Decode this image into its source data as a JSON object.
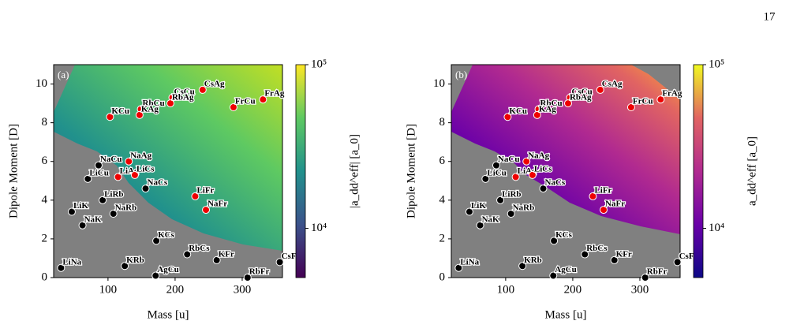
{
  "page_number": "17",
  "chart_data": [
    {
      "type": "scatter",
      "annotation": "(a)",
      "x_label": "Mass [u]",
      "y_label": "Dipole Moment [D]",
      "xlim": [
        19,
        360
      ],
      "ylim": [
        0,
        11
      ],
      "xticks": [
        100,
        200,
        300
      ],
      "yticks": [
        0,
        2,
        4,
        6,
        8,
        10
      ],
      "colormap": "viridis",
      "colorbar_label": "|a_dd^eff| [a_0]",
      "colorbar_log": true,
      "colorbar_lim": [
        5000,
        100000
      ],
      "colorbar_ticks": [
        {
          "value": 10000,
          "label": "10⁴"
        },
        {
          "value": 100000,
          "label": "10⁵"
        }
      ],
      "labels": [
        "LiNa",
        "LiK",
        "NaK",
        "LiCu",
        "LiRb",
        "NaCu",
        "NaRb",
        "LiAg",
        "NaAg",
        "LiCs",
        "NaCs",
        "KCu",
        "RbCu",
        "KAg",
        "CsCu",
        "RbAg",
        "CsAg",
        "FrCu",
        "FrAg",
        "LiFr",
        "NaFr",
        "KRb",
        "KCs",
        "AgCu",
        "RbCs",
        "KFr",
        "RbFr",
        "CsFr"
      ],
      "x": [
        30,
        46,
        62,
        70,
        92,
        86,
        108,
        115,
        131,
        140,
        156,
        103,
        149,
        147,
        196,
        193,
        241,
        287,
        331,
        230,
        246,
        125,
        172,
        171,
        218,
        262,
        308,
        356
      ],
      "y": [
        0.5,
        3.4,
        2.7,
        5.1,
        4.0,
        5.8,
        3.3,
        5.2,
        6.0,
        5.3,
        4.6,
        8.3,
        8.7,
        8.4,
        9.3,
        9.0,
        9.7,
        8.8,
        9.2,
        4.2,
        3.5,
        0.6,
        1.9,
        0.1,
        1.2,
        0.9,
        0,
        0.8
      ],
      "colors": [
        "#000",
        "#000",
        "#000",
        "#000",
        "#000",
        "#000",
        "#000",
        "#e00",
        "#e00",
        "#e00",
        "#000",
        "#e00",
        "#e00",
        "#e00",
        "#e00",
        "#e00",
        "#e00",
        "#e00",
        "#e00",
        "#e00",
        "#e00",
        "#000",
        "#000",
        "#000",
        "#000",
        "#000",
        "#000",
        "#000"
      ]
    },
    {
      "type": "scatter",
      "annotation": "(b)",
      "x_label": "Mass [u]",
      "y_label": "Dipole Moment [D]",
      "xlim": [
        19,
        360
      ],
      "ylim": [
        0,
        11
      ],
      "xticks": [
        100,
        200,
        300
      ],
      "yticks": [
        0,
        2,
        4,
        6,
        8,
        10
      ],
      "colormap": "plasma",
      "colorbar_label": "a_dd^eff [a_0]",
      "colorbar_log": true,
      "colorbar_lim": [
        5000,
        100000
      ],
      "colorbar_ticks": [
        {
          "value": 10000,
          "label": "10⁴"
        },
        {
          "value": 100000,
          "label": "10⁵"
        }
      ],
      "labels": [
        "LiNa",
        "LiK",
        "NaK",
        "LiCu",
        "LiRb",
        "NaCu",
        "NaRb",
        "LiAg",
        "NaAg",
        "LiCs",
        "NaCs",
        "KCu",
        "RbCu",
        "KAg",
        "CsCu",
        "RbAg",
        "CsAg",
        "FrCu",
        "FrAg",
        "LiFr",
        "NaFr",
        "KRb",
        "KCs",
        "AgCu",
        "RbCs",
        "KFr",
        "RbFr",
        "CsFr"
      ],
      "x": [
        30,
        46,
        62,
        70,
        92,
        86,
        108,
        115,
        131,
        140,
        156,
        103,
        149,
        147,
        196,
        193,
        241,
        287,
        331,
        230,
        246,
        125,
        172,
        171,
        218,
        262,
        308,
        356
      ],
      "y": [
        0.5,
        3.4,
        2.7,
        5.1,
        4.0,
        5.8,
        3.3,
        5.2,
        6.0,
        5.3,
        4.6,
        8.3,
        8.7,
        8.4,
        9.3,
        9.0,
        9.7,
        8.8,
        9.2,
        4.2,
        3.5,
        0.6,
        1.9,
        0.1,
        1.2,
        0.9,
        0,
        0.8
      ],
      "colors": [
        "#000",
        "#000",
        "#000",
        "#000",
        "#000",
        "#000",
        "#000",
        "#e00",
        "#e00",
        "#e00",
        "#000",
        "#e00",
        "#e00",
        "#e00",
        "#e00",
        "#e00",
        "#e00",
        "#e00",
        "#e00",
        "#e00",
        "#e00",
        "#000",
        "#000",
        "#000",
        "#000",
        "#000",
        "#000",
        "#000"
      ]
    }
  ]
}
